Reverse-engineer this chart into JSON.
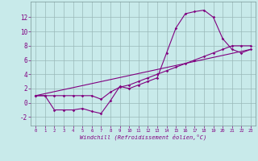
{
  "title": "",
  "xlabel": "Windchill (Refroidissement éolien,°C)",
  "bg_color": "#c8eaea",
  "grid_color": "#9ab8b8",
  "line_color": "#800080",
  "xlim": [
    -0.5,
    23.5
  ],
  "ylim": [
    -3.2,
    14.2
  ],
  "xticks": [
    0,
    1,
    2,
    3,
    4,
    5,
    6,
    7,
    8,
    9,
    10,
    11,
    12,
    13,
    14,
    15,
    16,
    17,
    18,
    19,
    20,
    21,
    22,
    23
  ],
  "yticks": [
    -2,
    0,
    2,
    4,
    6,
    8,
    10,
    12
  ],
  "line1_x": [
    0,
    1,
    2,
    3,
    4,
    5,
    6,
    7,
    8,
    9,
    10,
    11,
    12,
    13,
    14,
    15,
    16,
    17,
    18,
    19,
    20,
    21,
    22,
    23
  ],
  "line1_y": [
    1.0,
    1.0,
    -1.0,
    -1.0,
    -1.0,
    -0.8,
    -1.2,
    -1.5,
    0.3,
    2.3,
    2.0,
    2.5,
    3.0,
    3.5,
    7.0,
    10.5,
    12.5,
    12.8,
    13.0,
    12.0,
    9.0,
    7.5,
    7.0,
    7.5
  ],
  "line2_x": [
    0,
    1,
    2,
    3,
    4,
    5,
    6,
    7,
    8,
    9,
    10,
    11,
    12,
    13,
    14,
    15,
    16,
    17,
    18,
    19,
    20,
    21,
    22,
    23
  ],
  "line2_y": [
    1.0,
    1.0,
    1.0,
    1.0,
    1.0,
    1.0,
    1.0,
    0.5,
    1.5,
    2.2,
    2.5,
    3.0,
    3.5,
    4.0,
    4.5,
    5.0,
    5.5,
    6.0,
    6.5,
    7.0,
    7.5,
    8.0,
    8.0,
    8.0
  ],
  "line3_x": [
    0,
    23
  ],
  "line3_y": [
    1.0,
    7.5
  ]
}
